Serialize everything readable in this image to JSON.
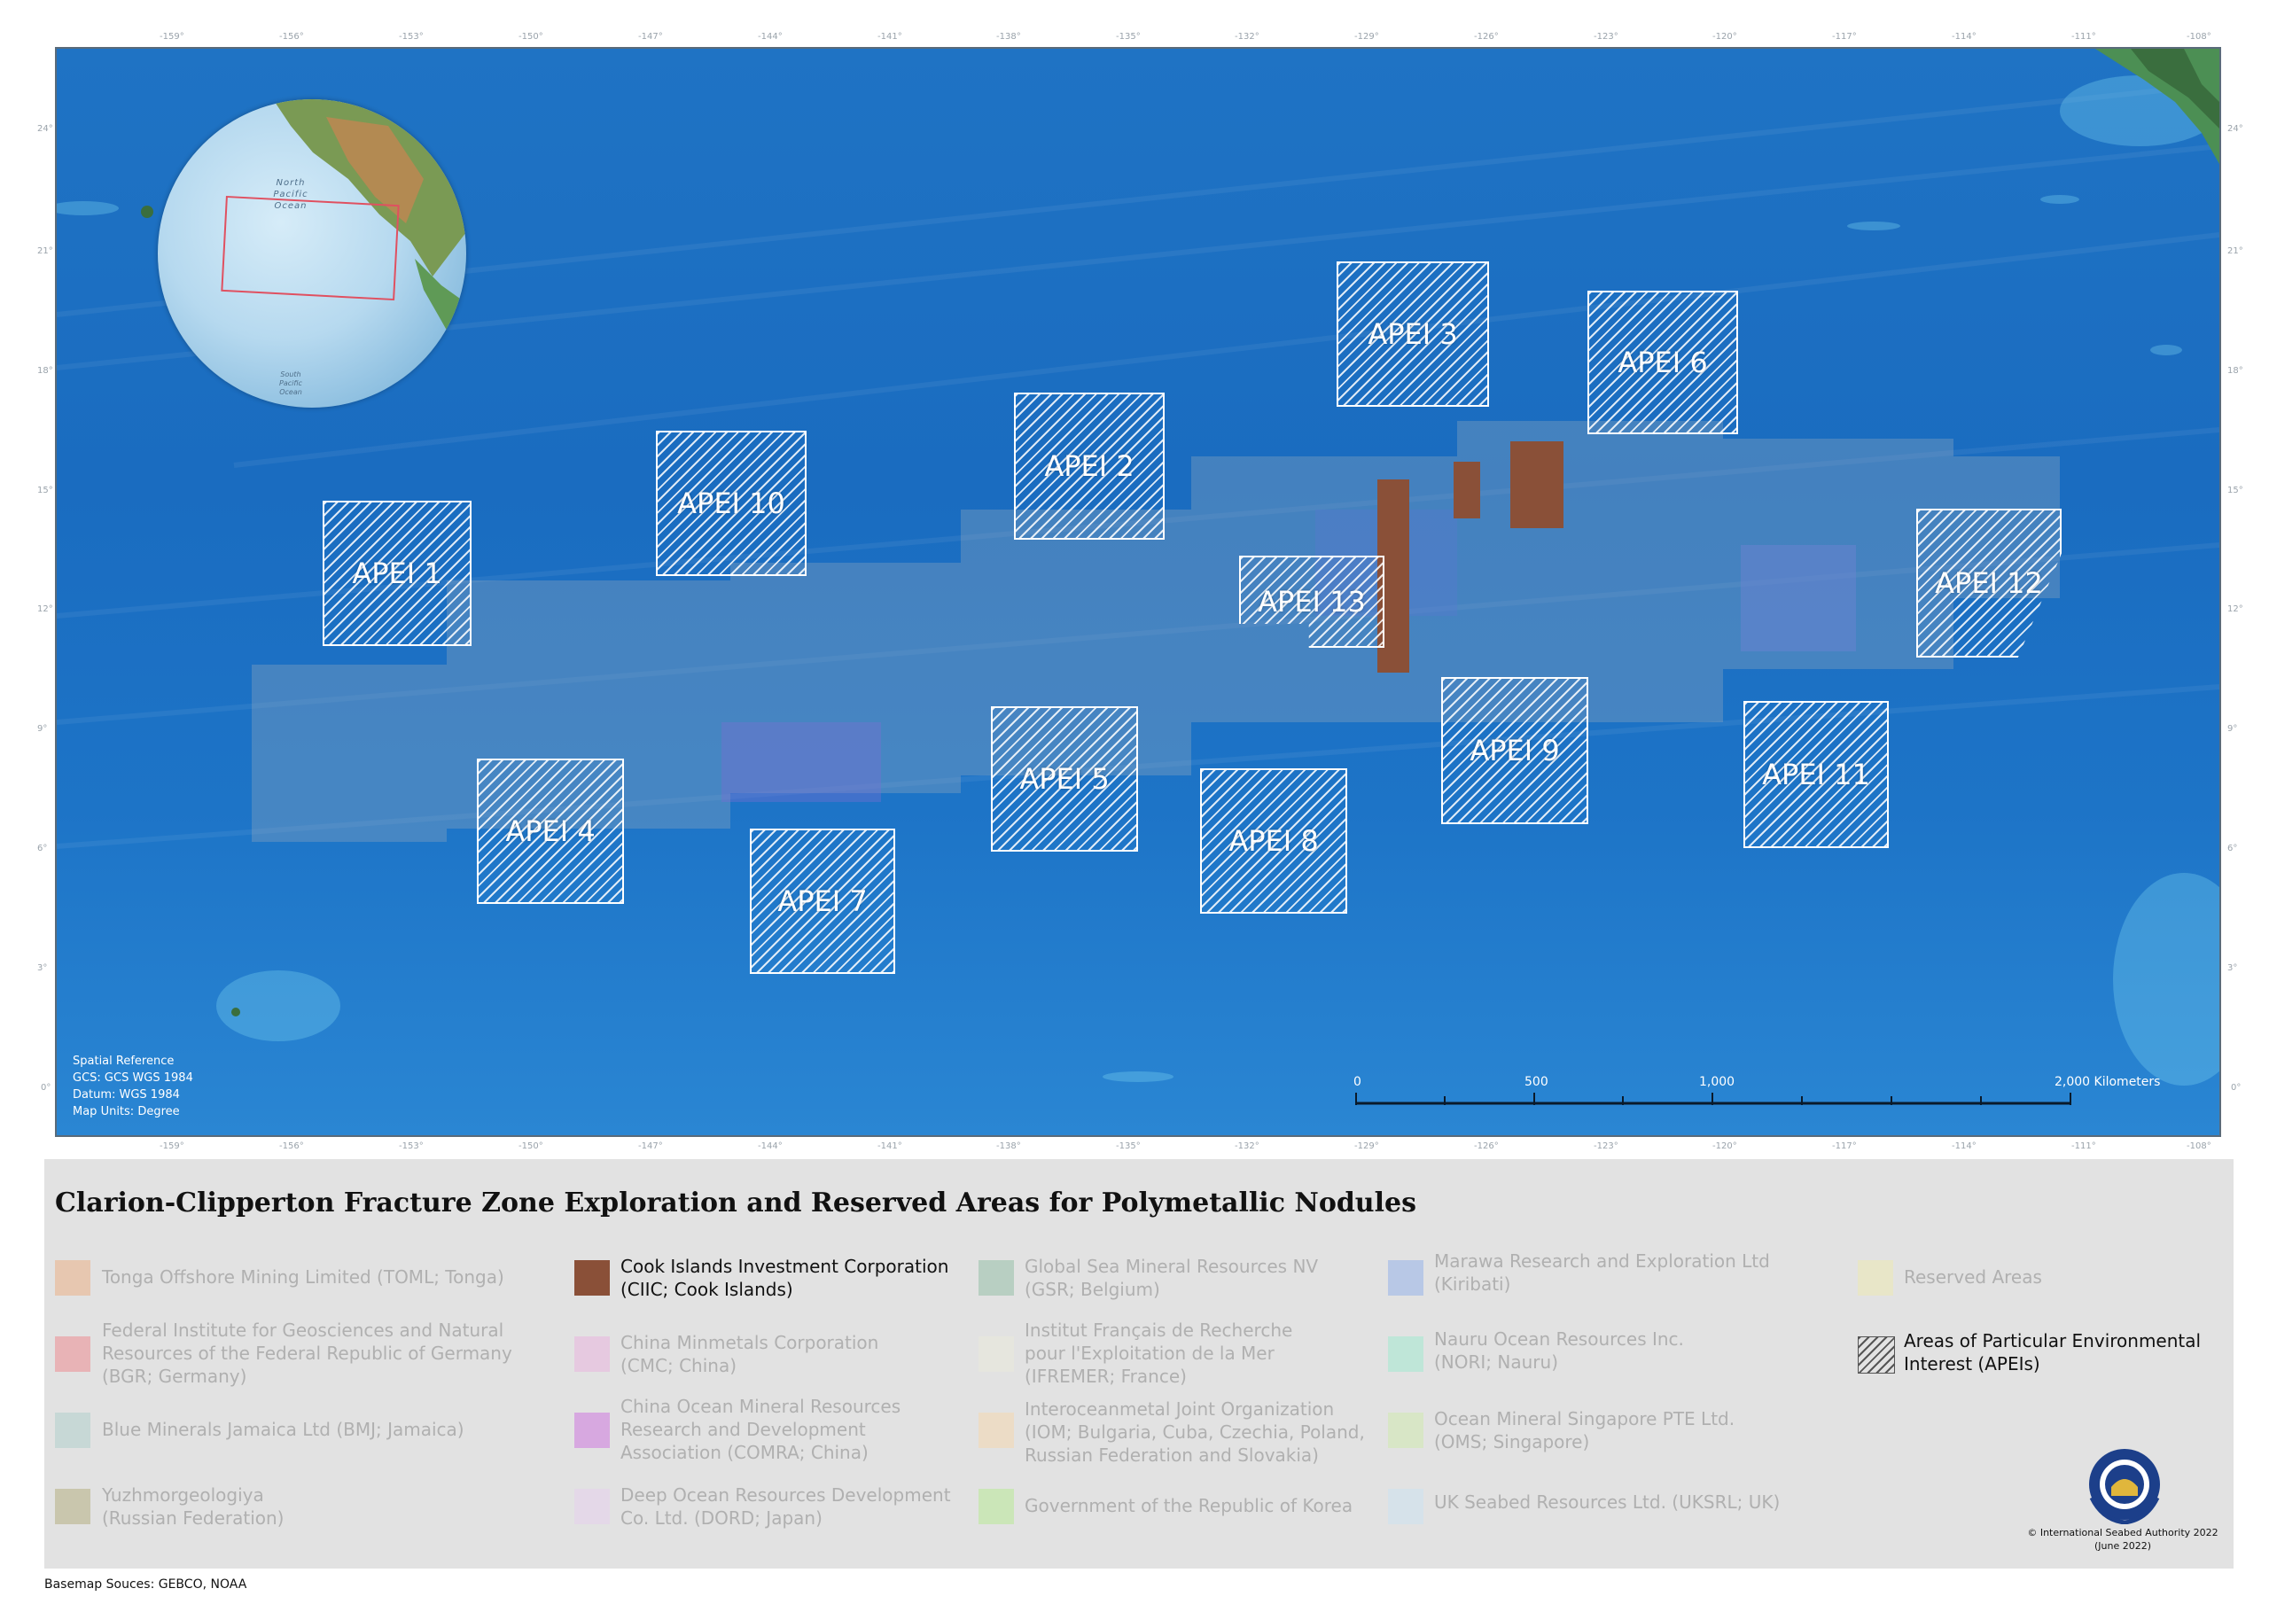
{
  "top_ticks": [
    "-159°",
    "-156°",
    "-153°",
    "-150°",
    "-147°",
    "-144°",
    "-141°",
    "-138°",
    "-135°",
    "-132°",
    "-129°",
    "-126°",
    "-123°",
    "-120°",
    "-117°",
    "-114°",
    "-111°",
    "-108°"
  ],
  "side_ticks": [
    "24°",
    "21°",
    "18°",
    "15°",
    "12°",
    "9°",
    "6°",
    "3°",
    "0°"
  ],
  "apeis": [
    {
      "label": "APEI 1"
    },
    {
      "label": "APEI 10"
    },
    {
      "label": "APEI 2"
    },
    {
      "label": "APEI 3"
    },
    {
      "label": "APEI 6"
    },
    {
      "label": "APEI 12"
    },
    {
      "label": "APEI 13"
    },
    {
      "label": "APEI 4"
    },
    {
      "label": "APEI 7"
    },
    {
      "label": "APEI 5"
    },
    {
      "label": "APEI 8"
    },
    {
      "label": "APEI 9"
    },
    {
      "label": "APEI 11"
    }
  ],
  "globe": {
    "north_label": "North\nPacific\nOcean",
    "south_label": "South\nPacific\nOcean"
  },
  "spatial_reference": "Spatial Reference\nGCS: GCS WGS 1984\nDatum: WGS 1984\nMap Units: Degree",
  "scale_bar": {
    "labels": [
      "0",
      "500",
      "1,000",
      "2,000 Kilometers"
    ]
  },
  "legend": {
    "title": "Clarion-Clipperton Fracture Zone Exploration and Reserved Areas for Polymetallic Nodules",
    "items": [
      {
        "label": "Tonga Offshore Mining Limited (TOML; Tonga)",
        "color": "#e7c7b0"
      },
      {
        "label": "Federal Institute for Geosciences and Natural\nResources of the Federal Republic of Germany\n(BGR; Germany)",
        "color": "#e8b3b6"
      },
      {
        "label": "Blue Minerals Jamaica Ltd (BMJ; Jamaica)",
        "color": "#c7d8d6"
      },
      {
        "label": "Yuzhmorgeologiya\n(Russian Federation)",
        "color": "#c9c6ad"
      },
      {
        "label": "Cook Islands Investment Corporation\n(CIIC; Cook Islands)",
        "color": "#8a5038"
      },
      {
        "label": "China Minmetals Corporation\n(CMC; China)",
        "color": "#e6c9e0"
      },
      {
        "label": "China Ocean Mineral Resources\nResearch and Development\nAssociation (COMRA; China)",
        "color": "#d7a8e0"
      },
      {
        "label": "Deep Ocean Resources Development\nCo. Ltd. (DORD; Japan)",
        "color": "#e4d8e8"
      },
      {
        "label": "Global Sea Mineral Resources NV\n(GSR; Belgium)",
        "color": "#b8cfc2"
      },
      {
        "label": "Institut Français de Recherche\npour l'Exploitation de la Mer\n(IFREMER; France)",
        "color": "#e6e6de"
      },
      {
        "label": "Interoceanmetal Joint Organization\n(IOM; Bulgaria, Cuba, Czechia, Poland,\nRussian Federation and Slovakia)",
        "color": "#ecdcc6"
      },
      {
        "label": "Government of the Republic of Korea",
        "color": "#cbe6b8"
      },
      {
        "label": "Marawa Research and Exploration Ltd\n(Kiribati)",
        "color": "#b8c8e6"
      },
      {
        "label": "Nauru Ocean Resources Inc.\n(NORI; Nauru)",
        "color": "#bfe6d8"
      },
      {
        "label": "Ocean Mineral Singapore PTE Ltd.\n(OMS; Singapore)",
        "color": "#d8e6c6"
      },
      {
        "label": "UK Seabed Resources Ltd. (UKSRL; UK)",
        "color": "#d6e2ea"
      },
      {
        "label": "Reserved Areas",
        "color": "#e8e6c8"
      },
      {
        "label": "Areas of Particular Environmental\nInterest (APEIs)",
        "color": "hatch"
      }
    ]
  },
  "copyright": "© International Seabed Authority 2022\n(June 2022)",
  "basemap_source": "Basemap Souces: GEBCO, NOAA"
}
